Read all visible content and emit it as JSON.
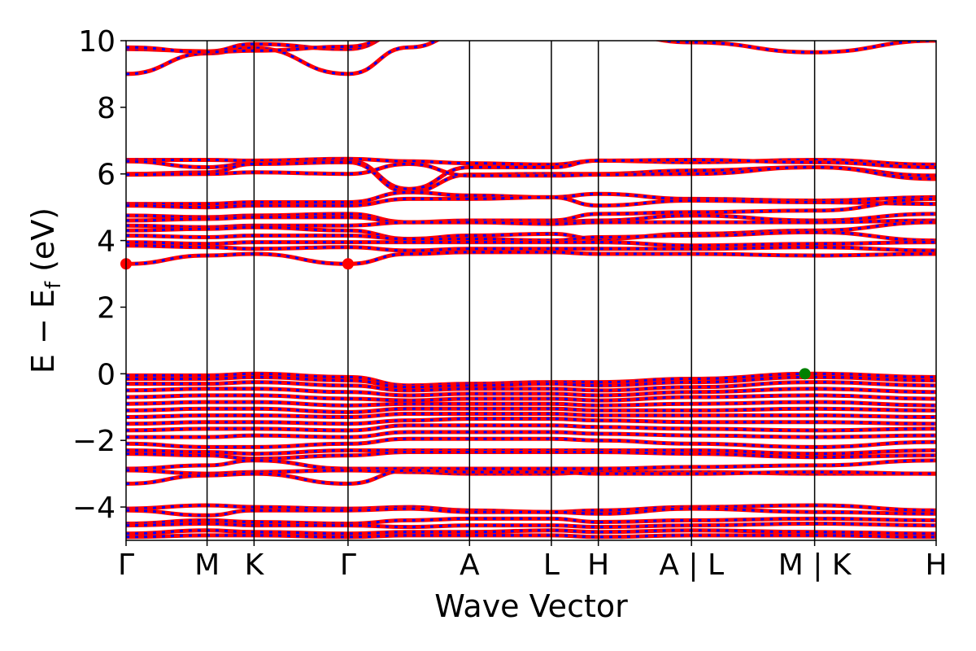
{
  "chart_data": {
    "type": "line",
    "title": "",
    "xlabel": "Wave Vector",
    "ylabel": "E − E",
    "ylabel_sub": "f",
    "ylabel_unit": " (eV)",
    "ylim": [
      -5,
      10
    ],
    "yticks": [
      {
        "value": 10,
        "label": "10"
      },
      {
        "value": 8,
        "label": "8"
      },
      {
        "value": 6,
        "label": "6"
      },
      {
        "value": 4,
        "label": "4"
      },
      {
        "value": 2,
        "label": "2"
      },
      {
        "value": 0,
        "label": "0"
      },
      {
        "value": -2,
        "label": "−2"
      },
      {
        "value": -4,
        "label": "−4"
      }
    ],
    "kpath": [
      {
        "label": "Γ",
        "k": 0.0
      },
      {
        "label": "M",
        "k": 1.0
      },
      {
        "label": "K",
        "k": 1.58
      },
      {
        "label": "Γ",
        "k": 2.74
      },
      {
        "label": "A",
        "k": 4.24
      },
      {
        "label": "L",
        "k": 5.25
      },
      {
        "label": "H",
        "k": 5.83
      },
      {
        "label": "A | L",
        "k": 6.98
      },
      {
        "label": "M | K",
        "k": 8.5
      },
      {
        "label": "H",
        "k": 10.0
      }
    ],
    "series": [
      {
        "color": "#ff0000",
        "style": "solid"
      },
      {
        "color": "#0000ff",
        "style": "dashed"
      }
    ],
    "cbm": {
      "k": [
        0.0,
        2.74
      ],
      "energy": 3.3,
      "color": "#ff0000"
    },
    "vbm": {
      "k": 8.38,
      "energy": 0.0,
      "color": "#008000"
    },
    "bands": [
      {
        "values": [
          9.0,
          9.62,
          9.78,
          9.0,
          9.8,
          10.3,
          10.3,
          10.3,
          10.3,
          10.3,
          10.3
        ]
      },
      {
        "values": [
          9.75,
          9.68,
          9.9,
          9.75,
          10.3,
          10.3,
          10.3,
          10.3,
          10.3,
          10.3,
          10.3
        ]
      },
      {
        "values": [
          9.8,
          9.66,
          9.7,
          9.82,
          10.3,
          10.3,
          10.3,
          10.3,
          9.95,
          9.65,
          10.0
        ]
      },
      {
        "values": [
          6.42,
          6.42,
          6.4,
          6.45,
          6.38,
          6.32,
          6.28,
          6.4,
          6.35,
          6.42,
          6.28
        ]
      },
      {
        "values": [
          6.38,
          6.2,
          6.32,
          6.4,
          5.55,
          6.2,
          6.2,
          6.4,
          6.42,
          6.35,
          6.2
        ]
      },
      {
        "values": [
          6.0,
          6.05,
          6.3,
          6.35,
          5.45,
          5.98,
          6.0,
          6.0,
          6.1,
          6.2,
          5.95
        ]
      },
      {
        "values": [
          5.98,
          6.0,
          6.05,
          6.0,
          6.3,
          5.95,
          5.95,
          5.98,
          6.0,
          6.2,
          5.85
        ]
      },
      {
        "values": [
          5.1,
          5.1,
          5.15,
          5.15,
          5.45,
          5.35,
          5.3,
          5.4,
          5.25,
          5.2,
          5.3
        ]
      },
      {
        "values": [
          5.05,
          5.0,
          5.05,
          5.05,
          5.25,
          5.25,
          5.3,
          5.05,
          5.2,
          5.15,
          5.1
        ]
      },
      {
        "values": [
          4.75,
          4.7,
          4.75,
          4.8,
          4.55,
          4.6,
          4.6,
          4.8,
          4.85,
          4.9,
          5.25
        ]
      },
      {
        "values": [
          4.6,
          4.65,
          4.7,
          4.7,
          4.55,
          4.55,
          4.55,
          4.6,
          4.75,
          4.6,
          4.8
        ]
      },
      {
        "values": [
          4.45,
          4.4,
          4.45,
          4.45,
          4.55,
          4.55,
          4.5,
          4.55,
          4.55,
          4.55,
          4.6
        ]
      },
      {
        "values": [
          4.3,
          4.35,
          4.4,
          4.3,
          4.05,
          4.15,
          4.2,
          4.05,
          4.2,
          4.3,
          4.55
        ]
      },
      {
        "values": [
          4.15,
          4.1,
          4.15,
          4.15,
          4.05,
          4.05,
          4.0,
          4.1,
          4.15,
          4.25,
          4.0
        ]
      },
      {
        "values": [
          3.95,
          3.9,
          3.95,
          3.95,
          3.95,
          3.95,
          3.95,
          3.95,
          3.85,
          3.9,
          3.95
        ]
      },
      {
        "values": [
          3.85,
          3.8,
          3.75,
          3.8,
          3.7,
          3.75,
          3.75,
          3.75,
          3.75,
          3.8,
          3.7
        ]
      },
      {
        "values": [
          3.3,
          3.55,
          3.6,
          3.3,
          3.6,
          3.65,
          3.65,
          3.6,
          3.6,
          3.55,
          3.6
        ]
      },
      {
        "values": [
          -0.05,
          -0.05,
          0.0,
          -0.1,
          -0.35,
          -0.3,
          -0.25,
          -0.25,
          -0.15,
          0.0,
          -0.1
        ]
      },
      {
        "values": [
          -0.15,
          -0.15,
          -0.1,
          -0.2,
          -0.4,
          -0.35,
          -0.3,
          -0.35,
          -0.25,
          -0.1,
          -0.2
        ]
      },
      {
        "values": [
          -0.3,
          -0.3,
          -0.25,
          -0.35,
          -0.5,
          -0.45,
          -0.45,
          -0.5,
          -0.4,
          -0.25,
          -0.35
        ]
      },
      {
        "values": [
          -0.5,
          -0.45,
          -0.45,
          -0.55,
          -0.65,
          -0.6,
          -0.6,
          -0.65,
          -0.55,
          -0.45,
          -0.55
        ]
      },
      {
        "values": [
          -0.7,
          -0.65,
          -0.65,
          -0.75,
          -0.8,
          -0.75,
          -0.75,
          -0.8,
          -0.7,
          -0.65,
          -0.75
        ]
      },
      {
        "values": [
          -0.9,
          -0.85,
          -0.85,
          -0.95,
          -0.9,
          -0.9,
          -0.9,
          -0.95,
          -0.9,
          -0.85,
          -0.95
        ]
      },
      {
        "values": [
          -1.1,
          -1.05,
          -1.05,
          -1.15,
          -1.05,
          -1.05,
          -1.05,
          -1.1,
          -1.1,
          -1.05,
          -1.1
        ]
      },
      {
        "values": [
          -1.3,
          -1.25,
          -1.25,
          -1.3,
          -1.2,
          -1.2,
          -1.2,
          -1.25,
          -1.25,
          -1.25,
          -1.3
        ]
      },
      {
        "values": [
          -1.5,
          -1.45,
          -1.45,
          -1.5,
          -1.4,
          -1.35,
          -1.35,
          -1.4,
          -1.45,
          -1.45,
          -1.5
        ]
      },
      {
        "values": [
          -1.7,
          -1.65,
          -1.65,
          -1.7,
          -1.55,
          -1.55,
          -1.55,
          -1.6,
          -1.65,
          -1.7,
          -1.65
        ]
      },
      {
        "values": [
          -1.9,
          -1.9,
          -1.85,
          -1.9,
          -1.75,
          -1.75,
          -1.75,
          -1.8,
          -1.85,
          -1.9,
          -1.85
        ]
      },
      {
        "values": [
          -2.1,
          -2.2,
          -2.2,
          -2.1,
          -1.95,
          -1.95,
          -1.95,
          -2.0,
          -2.1,
          -2.2,
          -2.05
        ]
      },
      {
        "values": [
          -2.3,
          -2.35,
          -2.4,
          -2.3,
          -2.3,
          -2.3,
          -2.3,
          -2.3,
          -2.3,
          -2.4,
          -2.3
        ]
      },
      {
        "values": [
          -2.4,
          -2.45,
          -2.55,
          -2.45,
          -2.35,
          -2.35,
          -2.35,
          -2.35,
          -2.4,
          -2.5,
          -2.45
        ]
      },
      {
        "values": [
          -2.85,
          -2.75,
          -2.6,
          -2.85,
          -2.85,
          -2.85,
          -2.85,
          -2.85,
          -2.8,
          -2.75,
          -2.6
        ]
      },
      {
        "values": [
          -2.9,
          -3.0,
          -2.95,
          -2.9,
          -2.95,
          -3.0,
          -3.0,
          -2.95,
          -2.95,
          -3.0,
          -3.0
        ]
      },
      {
        "values": [
          -3.3,
          -3.05,
          -3.0,
          -3.3,
          -2.9,
          -2.95,
          -2.95,
          -3.0,
          -3.0,
          -2.95,
          -3.0
        ]
      },
      {
        "values": [
          -4.05,
          -3.95,
          -4.0,
          -4.05,
          -4.0,
          -4.1,
          -4.15,
          -4.1,
          -4.0,
          -3.95,
          -4.1
        ]
      },
      {
        "values": [
          -4.1,
          -4.25,
          -4.1,
          -4.1,
          -4.05,
          -4.15,
          -4.15,
          -4.2,
          -4.05,
          -4.15,
          -4.2
        ]
      },
      {
        "values": [
          -4.5,
          -4.4,
          -4.45,
          -4.5,
          -4.4,
          -4.35,
          -4.35,
          -4.45,
          -4.4,
          -4.35,
          -4.4
        ]
      },
      {
        "values": [
          -4.55,
          -4.5,
          -4.55,
          -4.55,
          -4.6,
          -4.55,
          -4.55,
          -4.6,
          -4.55,
          -4.5,
          -4.55
        ]
      },
      {
        "values": [
          -4.8,
          -4.7,
          -4.75,
          -4.8,
          -4.75,
          -4.75,
          -4.7,
          -4.75,
          -4.7,
          -4.75,
          -4.8
        ]
      },
      {
        "values": [
          -4.9,
          -4.85,
          -4.85,
          -4.9,
          -4.85,
          -4.85,
          -4.85,
          -4.9,
          -4.85,
          -4.85,
          -4.9
        ]
      }
    ]
  }
}
